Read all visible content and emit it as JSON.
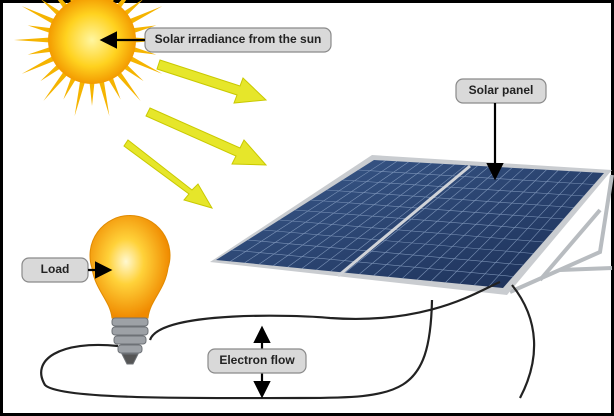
{
  "labels": {
    "sun": "Solar irradiance from the sun",
    "panel": "Solar panel",
    "load": "Load",
    "flow": "Electron flow"
  }
}
